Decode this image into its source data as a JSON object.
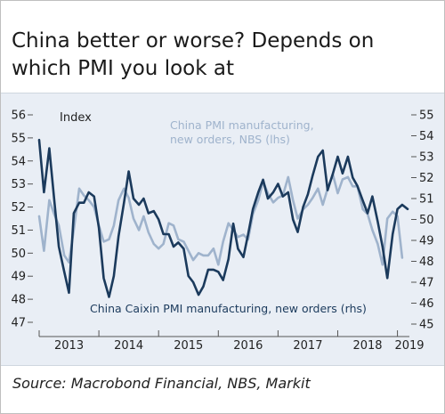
{
  "title": "China better or worse? Depends on which PMI you look at",
  "source": "Source: Macrobond Financial, NBS, Markit",
  "colors": {
    "nbs": "#9fb3cc",
    "caixin": "#1b3a5c",
    "background": "#e9eef5",
    "axis": "#555555"
  },
  "chart_data": {
    "type": "line",
    "y_left": {
      "label": "Index",
      "min": 47,
      "max": 56,
      "ticks": [
        47,
        48,
        49,
        50,
        51,
        52,
        53,
        54,
        55,
        56
      ]
    },
    "y_right": {
      "min": 45,
      "max": 55,
      "ticks": [
        45,
        46,
        47,
        48,
        49,
        50,
        51,
        52,
        53,
        54,
        55
      ]
    },
    "x_axis": {
      "labels": [
        "2013",
        "2014",
        "2015",
        "2016",
        "2017",
        "2018",
        "2019"
      ],
      "start": 2013,
      "end": 2019.2
    },
    "series": [
      {
        "name": "China PMI manufacturing, new orders, NBS (lhs)",
        "axis": "left",
        "label_lines": [
          "China PMI manufacturing,",
          "new orders, NBS (lhs)"
        ],
        "x": [
          2013.0,
          2013.08,
          2013.17,
          2013.25,
          2013.33,
          2013.42,
          2013.5,
          2013.58,
          2013.67,
          2013.75,
          2013.83,
          2013.92,
          2014.0,
          2014.08,
          2014.17,
          2014.25,
          2014.33,
          2014.42,
          2014.5,
          2014.58,
          2014.67,
          2014.75,
          2014.83,
          2014.92,
          2015.0,
          2015.08,
          2015.17,
          2015.25,
          2015.33,
          2015.42,
          2015.5,
          2015.58,
          2015.67,
          2015.75,
          2015.83,
          2015.92,
          2016.0,
          2016.08,
          2016.17,
          2016.25,
          2016.33,
          2016.42,
          2016.5,
          2016.58,
          2016.67,
          2016.75,
          2016.83,
          2016.92,
          2017.0,
          2017.08,
          2017.17,
          2017.25,
          2017.33,
          2017.42,
          2017.5,
          2017.58,
          2017.67,
          2017.75,
          2017.83,
          2017.92,
          2018.0,
          2018.08,
          2018.17,
          2018.25,
          2018.33,
          2018.42,
          2018.5,
          2018.58,
          2018.67,
          2018.75,
          2018.83,
          2018.92,
          2019.0,
          2019.08
        ],
        "values": [
          51.6,
          50.1,
          52.3,
          51.7,
          51.2,
          49.9,
          49.6,
          51.0,
          52.8,
          52.5,
          52.3,
          52.0,
          51.2,
          50.5,
          50.6,
          51.2,
          52.3,
          52.8,
          52.4,
          51.5,
          51.0,
          51.6,
          50.9,
          50.4,
          50.2,
          50.4,
          51.3,
          51.2,
          50.6,
          50.5,
          50.1,
          49.7,
          50.0,
          49.9,
          49.9,
          50.2,
          49.5,
          50.5,
          51.3,
          51.0,
          50.7,
          50.8,
          50.6,
          51.7,
          52.3,
          53.1,
          52.6,
          52.2,
          52.4,
          52.5,
          53.3,
          52.3,
          51.5,
          51.9,
          52.1,
          52.4,
          52.8,
          52.1,
          52.8,
          53.4,
          52.6,
          53.2,
          53.3,
          52.9,
          52.9,
          51.9,
          51.7,
          51.0,
          50.4,
          49.5,
          51.5,
          51.8,
          51.6,
          49.8
        ]
      },
      {
        "name": "China Caixin PMI manufacturing, new orders (rhs)",
        "axis": "right",
        "label_lines": [
          "China Caixin PMI manufacturing, new orders (rhs)"
        ],
        "x": [
          2013.0,
          2013.08,
          2013.17,
          2013.25,
          2013.33,
          2013.42,
          2013.5,
          2013.58,
          2013.67,
          2013.75,
          2013.83,
          2013.92,
          2014.0,
          2014.08,
          2014.17,
          2014.25,
          2014.33,
          2014.42,
          2014.5,
          2014.58,
          2014.67,
          2014.75,
          2014.83,
          2014.92,
          2015.0,
          2015.08,
          2015.17,
          2015.25,
          2015.33,
          2015.42,
          2015.5,
          2015.58,
          2015.67,
          2015.75,
          2015.83,
          2015.92,
          2016.0,
          2016.08,
          2016.17,
          2016.25,
          2016.33,
          2016.42,
          2016.5,
          2016.58,
          2016.67,
          2016.75,
          2016.83,
          2016.92,
          2017.0,
          2017.08,
          2017.17,
          2017.25,
          2017.33,
          2017.42,
          2017.5,
          2017.58,
          2017.67,
          2017.75,
          2017.83,
          2017.92,
          2018.0,
          2018.08,
          2018.17,
          2018.25,
          2018.33,
          2018.42,
          2018.5,
          2018.58,
          2018.67,
          2018.75,
          2018.83,
          2018.92,
          2019.0,
          2019.08,
          2019.17
        ],
        "values": [
          53.8,
          51.3,
          53.4,
          51.0,
          48.7,
          47.5,
          46.5,
          50.3,
          50.8,
          50.8,
          51.3,
          51.1,
          49.6,
          47.2,
          46.3,
          47.3,
          49.2,
          50.8,
          52.3,
          51.0,
          50.7,
          51.0,
          50.3,
          50.4,
          50.0,
          49.3,
          49.3,
          48.7,
          48.9,
          48.6,
          47.3,
          47.0,
          46.4,
          46.8,
          47.6,
          47.6,
          47.5,
          47.1,
          48.1,
          49.8,
          48.6,
          48.2,
          49.3,
          50.5,
          51.3,
          51.9,
          51.0,
          51.3,
          51.7,
          51.1,
          51.3,
          50.0,
          49.4,
          50.6,
          51.2,
          52.1,
          53.0,
          53.3,
          51.4,
          52.2,
          53.0,
          52.2,
          53.0,
          52.0,
          51.6,
          50.9,
          50.3,
          51.1,
          49.9,
          48.7,
          47.2,
          49.3,
          50.5,
          50.7,
          50.5
        ]
      }
    ]
  }
}
